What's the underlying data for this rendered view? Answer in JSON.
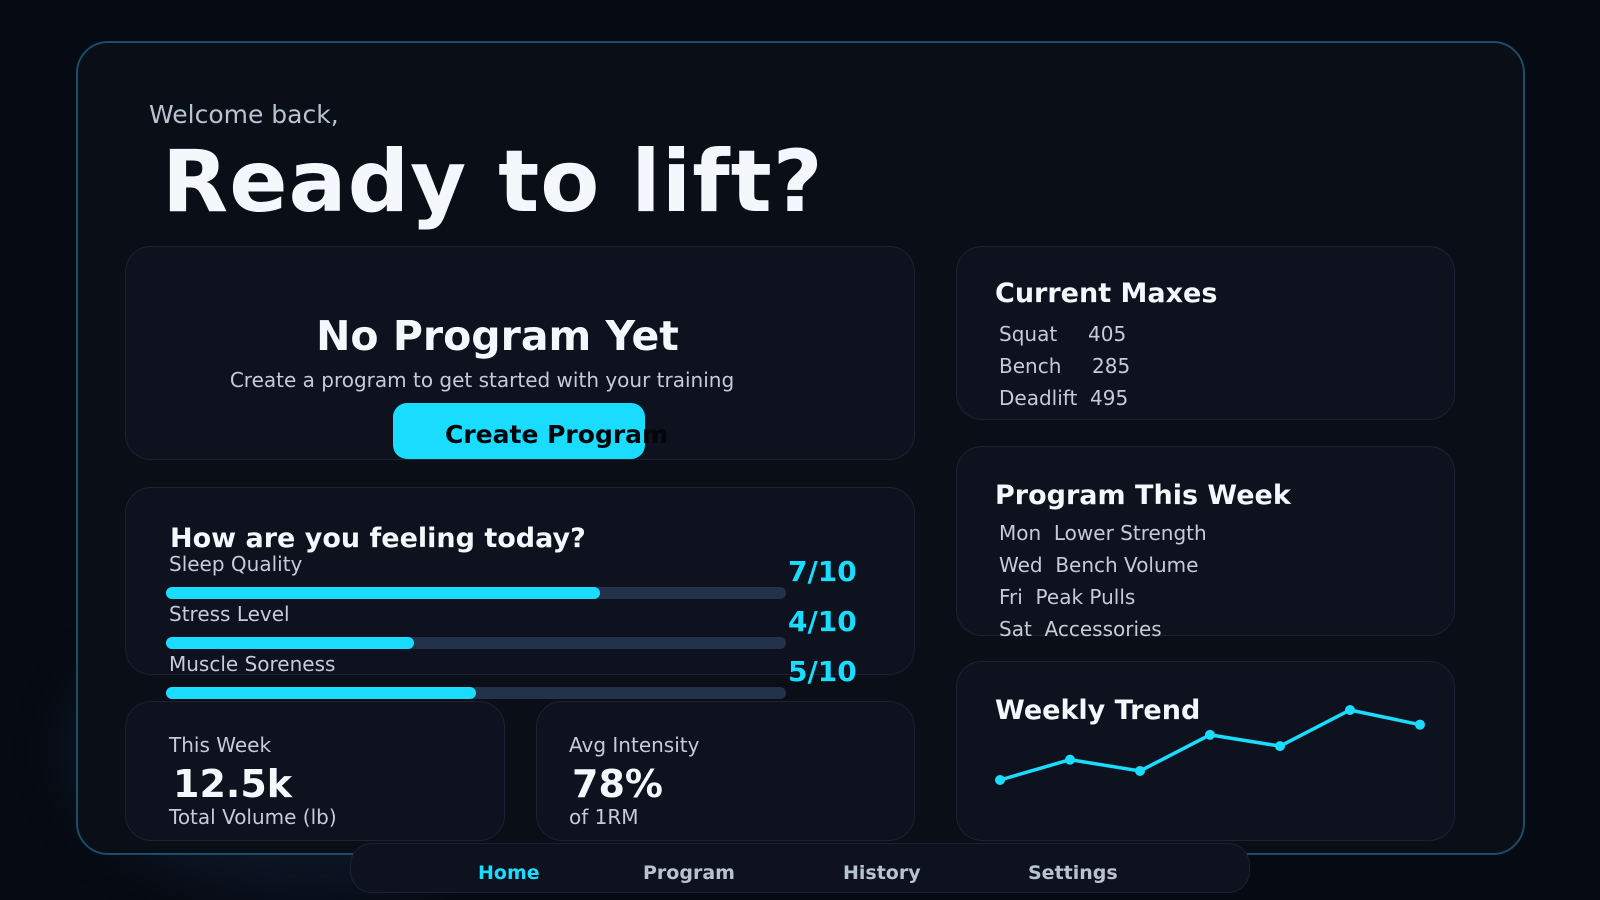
{
  "header": {
    "welcome": "Welcome back,",
    "title": "Ready to lift?"
  },
  "program_card": {
    "title": "No Program Yet",
    "subtitle": "Create a program to get started with your training",
    "button": "Create Program"
  },
  "feeling": {
    "title": "How are you feeling today?",
    "metrics": [
      {
        "label": "Sleep Quality",
        "value": "7/10",
        "level": 0.7
      },
      {
        "label": "Stress Level",
        "value": "4/10",
        "level": 0.4
      },
      {
        "label": "Muscle Soreness",
        "value": "5/10",
        "level": 0.5
      }
    ]
  },
  "stats": [
    {
      "label": "This Week",
      "value": "12.5k",
      "sub": "Total Volume (lb)"
    },
    {
      "label": "Avg Intensity",
      "value": "78%",
      "sub": "of 1RM"
    }
  ],
  "maxes": {
    "title": "Current Maxes",
    "items": [
      {
        "lift": "Squat",
        "value": "405"
      },
      {
        "lift": "Bench",
        "value": "285"
      },
      {
        "lift": "Deadlift",
        "value": "495"
      }
    ]
  },
  "week": {
    "title": "Program This Week",
    "items": [
      {
        "day": "Mon",
        "name": "Lower Strength"
      },
      {
        "day": "Wed",
        "name": "Bench Volume"
      },
      {
        "day": "Fri",
        "name": "Peak Pulls"
      },
      {
        "day": "Sat",
        "name": "Accessories"
      }
    ]
  },
  "chart_data": {
    "type": "line",
    "title": "Weekly Trend",
    "values": [
      20,
      38,
      28,
      60,
      50,
      82,
      69
    ],
    "color": "#19dcff"
  },
  "nav": {
    "items": [
      "Home",
      "Program",
      "History",
      "Settings"
    ],
    "active": "Home"
  },
  "colors": {
    "accent": "#19dcff",
    "background": "#0a0e17"
  }
}
